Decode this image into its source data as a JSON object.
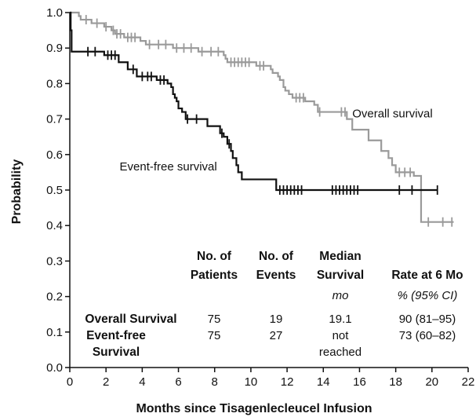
{
  "chart_data": {
    "type": "line",
    "subtype": "kaplan-meier step plot",
    "xlabel": "Months since Tisagenlecleucel Infusion",
    "ylabel": "Probability",
    "xlim": [
      0,
      22
    ],
    "ylim": [
      0,
      1.0
    ],
    "xticks": [
      0,
      2,
      4,
      6,
      8,
      10,
      12,
      14,
      16,
      18,
      20,
      22
    ],
    "yticks": [
      "0.0",
      "0.1",
      "0.2",
      "0.3",
      "0.4",
      "0.5",
      "0.6",
      "0.7",
      "0.8",
      "0.9",
      "1.0"
    ],
    "grid": false,
    "series": [
      {
        "name": "Overall survival",
        "color": "#9a9a9a",
        "steps": [
          [
            0,
            1.0
          ],
          [
            0.5,
            0.99
          ],
          [
            0.6,
            0.98
          ],
          [
            1.2,
            0.97
          ],
          [
            1.9,
            0.96
          ],
          [
            2.3,
            0.95
          ],
          [
            2.5,
            0.94
          ],
          [
            3.0,
            0.93
          ],
          [
            3.9,
            0.92
          ],
          [
            4.2,
            0.91
          ],
          [
            5.7,
            0.9
          ],
          [
            7.1,
            0.89
          ],
          [
            8.5,
            0.88
          ],
          [
            8.6,
            0.87
          ],
          [
            8.7,
            0.86
          ],
          [
            10.3,
            0.85
          ],
          [
            11.1,
            0.84
          ],
          [
            11.2,
            0.83
          ],
          [
            11.5,
            0.82
          ],
          [
            11.6,
            0.81
          ],
          [
            11.8,
            0.79
          ],
          [
            11.9,
            0.78
          ],
          [
            12.1,
            0.77
          ],
          [
            12.3,
            0.76
          ],
          [
            13.0,
            0.75
          ],
          [
            13.5,
            0.74
          ],
          [
            13.7,
            0.72
          ],
          [
            15.3,
            0.7
          ],
          [
            15.6,
            0.67
          ],
          [
            16.5,
            0.64
          ],
          [
            17.2,
            0.61
          ],
          [
            17.6,
            0.59
          ],
          [
            17.8,
            0.57
          ],
          [
            18.0,
            0.55
          ],
          [
            19.0,
            0.54
          ],
          [
            19.4,
            0.41
          ]
        ],
        "end": 21.2,
        "censored": [
          [
            0.9,
            0.98
          ],
          [
            1.5,
            0.97
          ],
          [
            2.0,
            0.96
          ],
          [
            2.4,
            0.95
          ],
          [
            2.6,
            0.94
          ],
          [
            2.8,
            0.94
          ],
          [
            3.2,
            0.93
          ],
          [
            3.4,
            0.93
          ],
          [
            3.6,
            0.93
          ],
          [
            4.4,
            0.91
          ],
          [
            4.9,
            0.91
          ],
          [
            5.3,
            0.91
          ],
          [
            5.9,
            0.9
          ],
          [
            6.3,
            0.9
          ],
          [
            6.7,
            0.9
          ],
          [
            7.3,
            0.89
          ],
          [
            7.8,
            0.89
          ],
          [
            8.2,
            0.89
          ],
          [
            8.9,
            0.86
          ],
          [
            9.1,
            0.86
          ],
          [
            9.3,
            0.86
          ],
          [
            9.5,
            0.86
          ],
          [
            9.7,
            0.86
          ],
          [
            9.9,
            0.86
          ],
          [
            10.5,
            0.85
          ],
          [
            10.7,
            0.85
          ],
          [
            12.5,
            0.76
          ],
          [
            12.7,
            0.76
          ],
          [
            12.9,
            0.76
          ],
          [
            13.8,
            0.72
          ],
          [
            15.0,
            0.72
          ],
          [
            15.2,
            0.72
          ],
          [
            18.2,
            0.55
          ],
          [
            18.5,
            0.55
          ],
          [
            18.8,
            0.55
          ],
          [
            19.8,
            0.41
          ],
          [
            20.6,
            0.41
          ],
          [
            21.1,
            0.41
          ]
        ]
      },
      {
        "name": "Event-free survival",
        "color": "#111111",
        "steps": [
          [
            0,
            1.0
          ],
          [
            0.05,
            0.95
          ],
          [
            0.1,
            0.89
          ],
          [
            1.9,
            0.88
          ],
          [
            2.7,
            0.86
          ],
          [
            3.2,
            0.84
          ],
          [
            3.7,
            0.82
          ],
          [
            4.8,
            0.81
          ],
          [
            5.4,
            0.8
          ],
          [
            5.6,
            0.79
          ],
          [
            5.7,
            0.77
          ],
          [
            5.8,
            0.76
          ],
          [
            5.9,
            0.75
          ],
          [
            6.0,
            0.73
          ],
          [
            6.2,
            0.72
          ],
          [
            6.4,
            0.7
          ],
          [
            6.7,
            0.7
          ],
          [
            7.6,
            0.68
          ],
          [
            8.3,
            0.66
          ],
          [
            8.5,
            0.65
          ],
          [
            8.7,
            0.63
          ],
          [
            8.9,
            0.61
          ],
          [
            9.0,
            0.59
          ],
          [
            9.2,
            0.57
          ],
          [
            9.3,
            0.55
          ],
          [
            9.5,
            0.53
          ],
          [
            11.4,
            0.5
          ]
        ],
        "end": 20.3,
        "censored": [
          [
            1.0,
            0.89
          ],
          [
            1.4,
            0.89
          ],
          [
            2.1,
            0.88
          ],
          [
            2.3,
            0.88
          ],
          [
            2.5,
            0.88
          ],
          [
            3.5,
            0.84
          ],
          [
            4.0,
            0.82
          ],
          [
            4.3,
            0.82
          ],
          [
            4.5,
            0.82
          ],
          [
            5.0,
            0.81
          ],
          [
            5.2,
            0.81
          ],
          [
            6.5,
            0.7
          ],
          [
            7.0,
            0.7
          ],
          [
            8.4,
            0.66
          ],
          [
            8.8,
            0.63
          ],
          [
            11.6,
            0.5
          ],
          [
            11.8,
            0.5
          ],
          [
            12.0,
            0.5
          ],
          [
            12.2,
            0.5
          ],
          [
            12.4,
            0.5
          ],
          [
            12.6,
            0.5
          ],
          [
            12.8,
            0.5
          ],
          [
            14.5,
            0.5
          ],
          [
            14.7,
            0.5
          ],
          [
            14.9,
            0.5
          ],
          [
            15.1,
            0.5
          ],
          [
            15.3,
            0.5
          ],
          [
            15.5,
            0.5
          ],
          [
            15.7,
            0.5
          ],
          [
            15.9,
            0.5
          ],
          [
            18.2,
            0.5
          ],
          [
            18.9,
            0.5
          ],
          [
            20.3,
            0.5
          ]
        ]
      }
    ],
    "annotations": [
      {
        "text": "Overall survival",
        "x": 15.6,
        "y": 0.705
      },
      {
        "text": "Event-free survival",
        "x": 2.75,
        "y": 0.555
      }
    ],
    "table": {
      "headers": [
        {
          "line1": "No. of",
          "line2": "Patients"
        },
        {
          "line1": "No. of",
          "line2": "Events"
        },
        {
          "line1": "Median",
          "line2": "Survival"
        },
        {
          "line1": "",
          "line2": "Rate at 6 Mo"
        }
      ],
      "units": [
        "",
        "",
        "mo",
        "% (95% CI)"
      ],
      "rows": [
        {
          "label": [
            "Overall Survival"
          ],
          "patients": "75",
          "events": "19",
          "median": [
            "19.1"
          ],
          "rate": "90 (81–95)"
        },
        {
          "label": [
            "Event-free",
            "Survival"
          ],
          "patients": "75",
          "events": "27",
          "median": [
            "not",
            "reached"
          ],
          "rate": "73 (60–82)"
        }
      ]
    }
  }
}
